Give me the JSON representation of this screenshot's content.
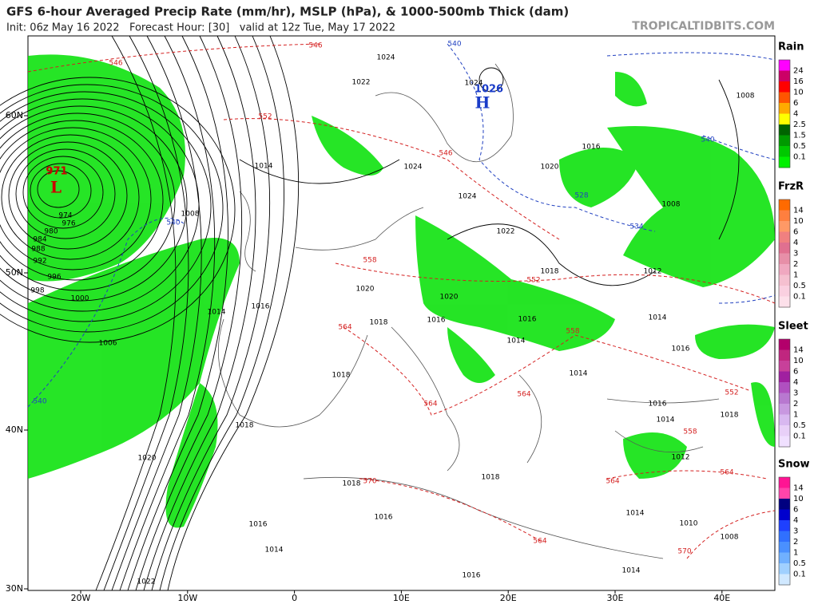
{
  "header": {
    "title": "GFS 6-hour Averaged Precip Rate (mm/hr), MSLP (hPa), & 1000-500mb Thick (dam)",
    "subtitle": "Init: 06z May 16 2022   Forecast Hour: [30]   valid at 12z Tue, May 17 2022",
    "site": "TROPICALTIDBITS.COM"
  },
  "map": {
    "lat_labels": [
      "60N",
      "50N",
      "40N",
      "30N"
    ],
    "lon_labels": [
      "20W",
      "10W",
      "0",
      "10E",
      "20E",
      "30E",
      "40E"
    ],
    "labels": [
      {
        "text": "971",
        "color": "#cc0000"
      },
      {
        "text": "L",
        "color": "#cc0000"
      },
      {
        "text": "1026",
        "color": "#1a3cc8"
      },
      {
        "text": "H",
        "color": "#1a3cc8"
      },
      {
        "text": "974",
        "color": "#000"
      },
      {
        "text": "976",
        "color": "#000"
      },
      {
        "text": "980",
        "color": "#000"
      },
      {
        "text": "984",
        "color": "#000"
      },
      {
        "text": "988",
        "color": "#000"
      },
      {
        "text": "992",
        "color": "#000"
      },
      {
        "text": "996",
        "color": "#000"
      },
      {
        "text": "998",
        "color": "#000"
      },
      {
        "text": "1000",
        "color": "#000"
      },
      {
        "text": "1006",
        "color": "#000"
      },
      {
        "text": "1008",
        "color": "#000"
      },
      {
        "text": "1014",
        "color": "#000"
      },
      {
        "text": "1024",
        "color": "#000"
      },
      {
        "text": "1022",
        "color": "#000"
      },
      {
        "text": "1024",
        "color": "#000"
      },
      {
        "text": "1024",
        "color": "#000"
      },
      {
        "text": "1020",
        "color": "#000"
      },
      {
        "text": "1016",
        "color": "#000"
      },
      {
        "text": "1008",
        "color": "#000"
      },
      {
        "text": "1008",
        "color": "#000"
      },
      {
        "text": "1024",
        "color": "#000"
      },
      {
        "text": "1022",
        "color": "#000"
      },
      {
        "text": "1018",
        "color": "#000"
      },
      {
        "text": "1012",
        "color": "#000"
      },
      {
        "text": "1020",
        "color": "#000"
      },
      {
        "text": "1020",
        "color": "#000"
      },
      {
        "text": "1016",
        "color": "#000"
      },
      {
        "text": "1014",
        "color": "#000"
      },
      {
        "text": "1018",
        "color": "#000"
      },
      {
        "text": "1016",
        "color": "#000"
      },
      {
        "text": "1016",
        "color": "#000"
      },
      {
        "text": "1014",
        "color": "#000"
      },
      {
        "text": "1016",
        "color": "#000"
      },
      {
        "text": "1014",
        "color": "#000"
      },
      {
        "text": "1014",
        "color": "#000"
      },
      {
        "text": "1018",
        "color": "#000"
      },
      {
        "text": "1016",
        "color": "#000"
      },
      {
        "text": "1014",
        "color": "#000"
      },
      {
        "text": "1018",
        "color": "#000"
      },
      {
        "text": "1018",
        "color": "#000"
      },
      {
        "text": "1012",
        "color": "#000"
      },
      {
        "text": "1020",
        "color": "#000"
      },
      {
        "text": "1018",
        "color": "#000"
      },
      {
        "text": "1018",
        "color": "#000"
      },
      {
        "text": "1014",
        "color": "#000"
      },
      {
        "text": "1016",
        "color": "#000"
      },
      {
        "text": "1016",
        "color": "#000"
      },
      {
        "text": "1010",
        "color": "#000"
      },
      {
        "text": "1014",
        "color": "#000"
      },
      {
        "text": "1008",
        "color": "#000"
      },
      {
        "text": "1022",
        "color": "#000"
      },
      {
        "text": "1016",
        "color": "#000"
      },
      {
        "text": "1014",
        "color": "#000"
      },
      {
        "text": "546",
        "color": "#d42020"
      },
      {
        "text": "546",
        "color": "#d42020"
      },
      {
        "text": "552",
        "color": "#d42020"
      },
      {
        "text": "546",
        "color": "#d42020"
      },
      {
        "text": "558",
        "color": "#d42020"
      },
      {
        "text": "552",
        "color": "#d42020"
      },
      {
        "text": "564",
        "color": "#d42020"
      },
      {
        "text": "558",
        "color": "#d42020"
      },
      {
        "text": "552",
        "color": "#d42020"
      },
      {
        "text": "564",
        "color": "#d42020"
      },
      {
        "text": "564",
        "color": "#d42020"
      },
      {
        "text": "558",
        "color": "#d42020"
      },
      {
        "text": "570",
        "color": "#d42020"
      },
      {
        "text": "564",
        "color": "#d42020"
      },
      {
        "text": "564",
        "color": "#d42020"
      },
      {
        "text": "564",
        "color": "#d42020"
      },
      {
        "text": "570",
        "color": "#d42020"
      },
      {
        "text": "540",
        "color": "#2040c0"
      },
      {
        "text": "540",
        "color": "#2040c0"
      },
      {
        "text": "528",
        "color": "#2040c0"
      },
      {
        "text": "534",
        "color": "#2040c0"
      },
      {
        "text": "540",
        "color": "#2040c0"
      },
      {
        "text": "540",
        "color": "#2040c0"
      }
    ]
  },
  "legend": [
    {
      "title": "Rain",
      "labels": [
        24,
        16,
        10,
        6,
        4,
        2.5,
        1.5,
        0.5,
        0.1
      ],
      "colors": [
        "#ff00ff",
        "#cc0066",
        "#ff0000",
        "#ff5500",
        "#ffaa00",
        "#ffff00",
        "#006400",
        "#009a00",
        "#00c800",
        "#00f000"
      ]
    },
    {
      "title": "FrzR",
      "labels": [
        14,
        10,
        6,
        4,
        3,
        2,
        1,
        0.5,
        0.1
      ],
      "colors": [
        "#ff6a00",
        "#ff7f3f",
        "#ff9966",
        "#f08080",
        "#e07090",
        "#e78fa8",
        "#f0a8c0",
        "#f5c0d0",
        "#fad0e0",
        "#fde0ea"
      ]
    },
    {
      "title": "Sleet",
      "labels": [
        14,
        10,
        6,
        4,
        3,
        2,
        1,
        0.5,
        0.1
      ],
      "colors": [
        "#b3006b",
        "#c0267f",
        "#c8409a",
        "#a020a0",
        "#b050c0",
        "#b878d0",
        "#c898e0",
        "#d8b8f0",
        "#e8d0f8",
        "#f0e0ff"
      ]
    },
    {
      "title": "Snow",
      "labels": [
        14,
        10,
        6,
        4,
        3,
        2,
        1,
        0.5,
        0.1
      ],
      "colors": [
        "#ff1493",
        "#ff44aa",
        "#000080",
        "#0000cd",
        "#1e40ff",
        "#3070ff",
        "#4a90ff",
        "#70b0ff",
        "#a0d0ff",
        "#d0e8ff"
      ]
    }
  ]
}
